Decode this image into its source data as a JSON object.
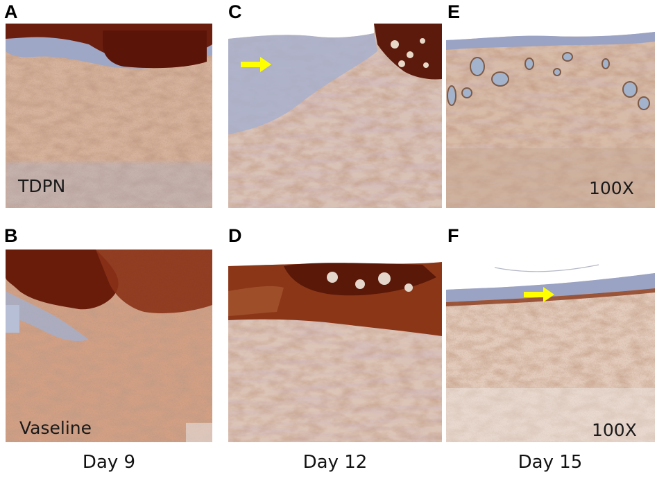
{
  "panels": {
    "a": {
      "letter": "A",
      "label": "TDPN"
    },
    "b": {
      "letter": "B",
      "label": "Vaseline"
    },
    "c": {
      "letter": "C"
    },
    "d": {
      "letter": "D"
    },
    "e": {
      "letter": "E",
      "label": "100X"
    },
    "f": {
      "letter": "F",
      "label": "100X"
    }
  },
  "columns": {
    "day9": "Day 9",
    "day12": "Day 12",
    "day15": "Day 15"
  },
  "colors": {
    "arrow": "#ffff00",
    "stain_dark": "#7a2a12",
    "stain_mid": "#c07a52",
    "counterstain": "#9aa3c4"
  }
}
